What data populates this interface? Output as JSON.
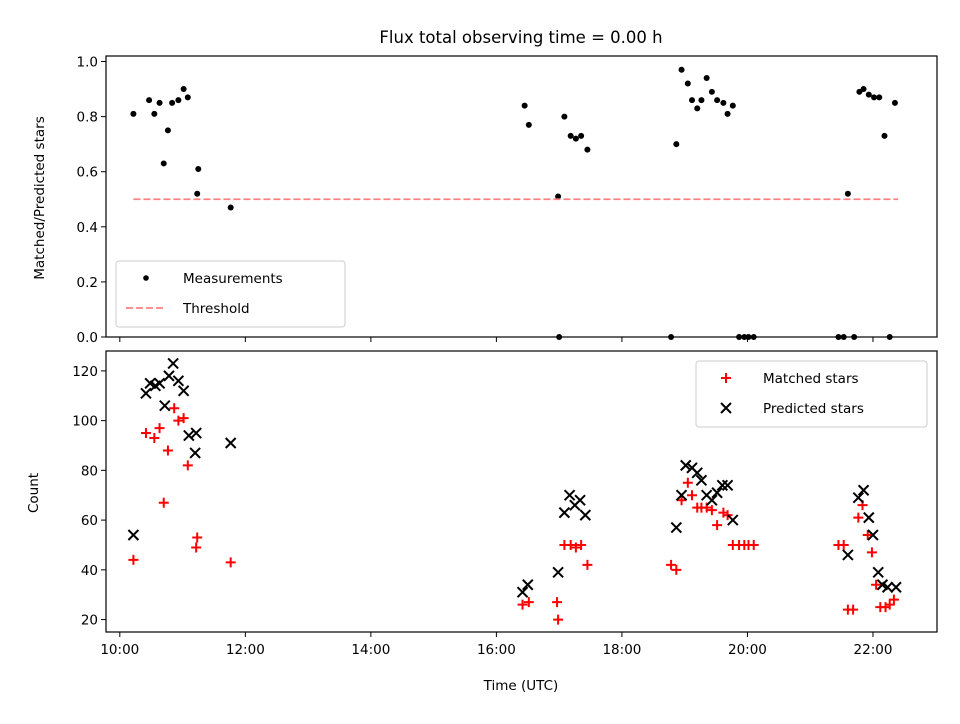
{
  "figure": {
    "title": "Flux total observing time = 0.00 h"
  },
  "chart_data": [
    {
      "type": "scatter",
      "panel": "top",
      "ylabel": "Matched/Predicted stars",
      "ylim": [
        0,
        1.02
      ],
      "y_ticks": [
        "0.0",
        "0.2",
        "0.4",
        "0.6",
        "0.8",
        "1.0"
      ],
      "legend_position": "lower-left",
      "series": [
        {
          "name": "Measurements",
          "marker": "dot",
          "color": "#000000",
          "points": [
            [
              "10:13",
              0.81
            ],
            [
              "10:28",
              0.86
            ],
            [
              "10:33",
              0.81
            ],
            [
              "10:38",
              0.85
            ],
            [
              "10:42",
              0.63
            ],
            [
              "10:46",
              0.75
            ],
            [
              "10:50",
              0.85
            ],
            [
              "10:56",
              0.86
            ],
            [
              "11:01",
              0.9
            ],
            [
              "11:05",
              0.87
            ],
            [
              "11:14",
              0.52
            ],
            [
              "11:15",
              0.61
            ],
            [
              "11:46",
              0.47
            ],
            [
              "16:27",
              0.84
            ],
            [
              "16:31",
              0.77
            ],
            [
              "16:59",
              0.51
            ],
            [
              "17:00",
              0.0
            ],
            [
              "17:05",
              0.8
            ],
            [
              "17:11",
              0.73
            ],
            [
              "17:16",
              0.72
            ],
            [
              "17:21",
              0.73
            ],
            [
              "17:27",
              0.68
            ],
            [
              "18:47",
              0.0
            ],
            [
              "18:52",
              0.7
            ],
            [
              "18:57",
              0.97
            ],
            [
              "19:03",
              0.92
            ],
            [
              "19:07",
              0.86
            ],
            [
              "19:12",
              0.83
            ],
            [
              "19:16",
              0.86
            ],
            [
              "19:21",
              0.94
            ],
            [
              "19:26",
              0.89
            ],
            [
              "19:31",
              0.86
            ],
            [
              "19:37",
              0.85
            ],
            [
              "19:41",
              0.81
            ],
            [
              "19:46",
              0.84
            ],
            [
              "19:52",
              0.0
            ],
            [
              "19:57",
              0.0
            ],
            [
              "20:01",
              0.0
            ],
            [
              "20:06",
              0.0
            ],
            [
              "21:27",
              0.0
            ],
            [
              "21:32",
              0.0
            ],
            [
              "21:36",
              0.52
            ],
            [
              "21:42",
              0.0
            ],
            [
              "21:47",
              0.89
            ],
            [
              "21:51",
              0.9
            ],
            [
              "21:56",
              0.88
            ],
            [
              "22:01",
              0.87
            ],
            [
              "22:06",
              0.87
            ],
            [
              "22:11",
              0.73
            ],
            [
              "22:16",
              0.0
            ],
            [
              "22:21",
              0.85
            ]
          ]
        },
        {
          "name": "Threshold",
          "marker": "dashed-line",
          "color": "#ff8080",
          "points": [
            [
              "10:13",
              0.5
            ],
            [
              "22:24",
              0.5
            ]
          ]
        }
      ]
    },
    {
      "type": "scatter",
      "panel": "bottom",
      "xlabel": "Time (UTC)",
      "ylabel": "Count",
      "ylim": [
        15,
        128
      ],
      "y_ticks": [
        "20",
        "40",
        "60",
        "80",
        "100",
        "120"
      ],
      "x_ticks": [
        "10:00",
        "12:00",
        "14:00",
        "16:00",
        "18:00",
        "20:00",
        "22:00"
      ],
      "legend_position": "upper-right",
      "series": [
        {
          "name": "Matched stars",
          "marker": "plus",
          "color": "#ff0000",
          "points": [
            [
              "10:13",
              44
            ],
            [
              "10:25",
              95
            ],
            [
              "10:33",
              93
            ],
            [
              "10:38",
              97
            ],
            [
              "10:42",
              67
            ],
            [
              "10:46",
              88
            ],
            [
              "10:52",
              105
            ],
            [
              "10:56",
              100
            ],
            [
              "11:01",
              101
            ],
            [
              "11:05",
              82
            ],
            [
              "11:13",
              49
            ],
            [
              "11:14",
              53
            ],
            [
              "11:46",
              43
            ],
            [
              "16:25",
              26
            ],
            [
              "16:31",
              27
            ],
            [
              "16:58",
              27
            ],
            [
              "16:59",
              20
            ],
            [
              "17:05",
              50
            ],
            [
              "17:11",
              50
            ],
            [
              "17:16",
              49
            ],
            [
              "17:21",
              50
            ],
            [
              "17:27",
              42
            ],
            [
              "18:47",
              42
            ],
            [
              "18:52",
              40
            ],
            [
              "18:57",
              68
            ],
            [
              "19:03",
              75
            ],
            [
              "19:07",
              70
            ],
            [
              "19:12",
              65
            ],
            [
              "19:16",
              65
            ],
            [
              "19:21",
              65
            ],
            [
              "19:26",
              64
            ],
            [
              "19:31",
              58
            ],
            [
              "19:37",
              63
            ],
            [
              "19:41",
              62
            ],
            [
              "19:46",
              50
            ],
            [
              "19:52",
              50
            ],
            [
              "19:57",
              50
            ],
            [
              "20:01",
              50
            ],
            [
              "20:06",
              50
            ],
            [
              "21:27",
              50
            ],
            [
              "21:32",
              50
            ],
            [
              "21:36",
              24
            ],
            [
              "21:41",
              24
            ],
            [
              "21:46",
              61
            ],
            [
              "21:50",
              66
            ],
            [
              "21:55",
              54
            ],
            [
              "21:59",
              47
            ],
            [
              "22:03",
              34
            ],
            [
              "22:07",
              25
            ],
            [
              "22:12",
              25
            ],
            [
              "22:16",
              26
            ],
            [
              "22:20",
              28
            ]
          ]
        },
        {
          "name": "Predicted stars",
          "marker": "x",
          "color": "#000000",
          "points": [
            [
              "10:13",
              54
            ],
            [
              "10:25",
              111
            ],
            [
              "10:29",
              115
            ],
            [
              "10:34",
              114
            ],
            [
              "10:38",
              115
            ],
            [
              "10:43",
              106
            ],
            [
              "10:47",
              118
            ],
            [
              "10:51",
              123
            ],
            [
              "10:56",
              116
            ],
            [
              "11:01",
              112
            ],
            [
              "11:06",
              94
            ],
            [
              "11:12",
              87
            ],
            [
              "11:13",
              95
            ],
            [
              "11:46",
              91
            ],
            [
              "16:25",
              31
            ],
            [
              "16:30",
              34
            ],
            [
              "16:59",
              39
            ],
            [
              "17:05",
              63
            ],
            [
              "17:10",
              70
            ],
            [
              "17:15",
              66
            ],
            [
              "17:20",
              68
            ],
            [
              "17:25",
              62
            ],
            [
              "18:52",
              57
            ],
            [
              "18:57",
              70
            ],
            [
              "19:01",
              82
            ],
            [
              "19:07",
              81
            ],
            [
              "19:12",
              79
            ],
            [
              "19:16",
              76
            ],
            [
              "19:21",
              70
            ],
            [
              "19:26",
              68
            ],
            [
              "19:31",
              71
            ],
            [
              "19:36",
              74
            ],
            [
              "19:41",
              74
            ],
            [
              "19:46",
              60
            ],
            [
              "21:36",
              46
            ],
            [
              "21:46",
              69
            ],
            [
              "21:51",
              72
            ],
            [
              "21:56",
              61
            ],
            [
              "22:00",
              54
            ],
            [
              "22:05",
              39
            ],
            [
              "22:09",
              34
            ],
            [
              "22:14",
              33
            ],
            [
              "22:22",
              33
            ]
          ]
        }
      ]
    }
  ]
}
